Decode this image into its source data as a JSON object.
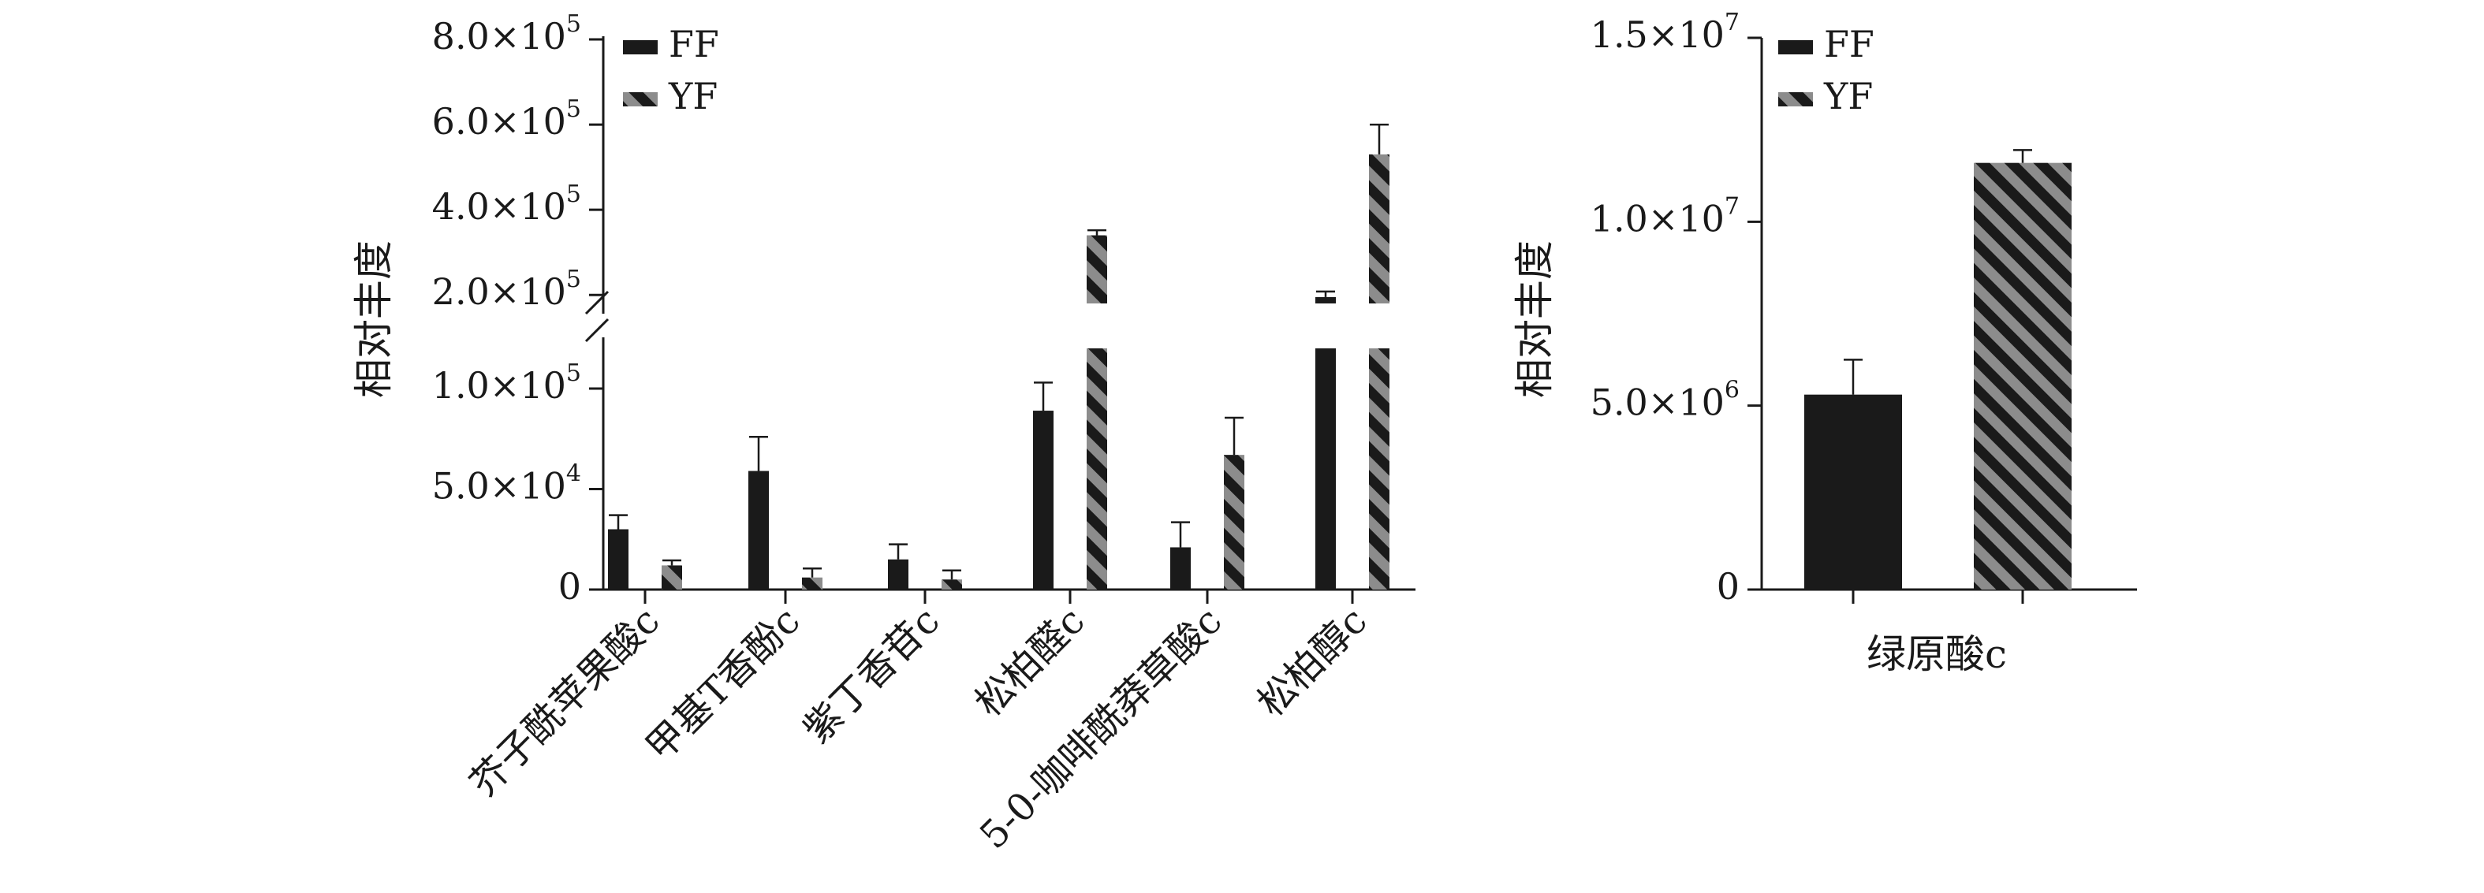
{
  "chart_data": [
    {
      "type": "bar",
      "title": "",
      "ylabel": "相对丰度",
      "xlabel": "",
      "y_axis_break": {
        "lower_range": [
          0,
          120000
        ],
        "upper_range": [
          180000,
          800000
        ]
      },
      "y_ticks_lower": [
        {
          "value": 0,
          "label": "0",
          "exp": ""
        },
        {
          "value": 50000,
          "label": "5.0×10",
          "exp": "4"
        },
        {
          "value": 100000,
          "label": "1.0×10",
          "exp": "5"
        }
      ],
      "y_ticks_upper": [
        {
          "value": 200000,
          "label": "2.0×10",
          "exp": "5"
        },
        {
          "value": 400000,
          "label": "4.0×10",
          "exp": "5"
        },
        {
          "value": 600000,
          "label": "6.0×10",
          "exp": "5"
        },
        {
          "value": 800000,
          "label": "8.0×10",
          "exp": "5"
        }
      ],
      "categories": [
        "芥子酰苹果酸c",
        "甲基T香酚c",
        "紫丁香苷c",
        "松柏醛c",
        "5-0-咖啡酰莽草酸c",
        "松柏醇c"
      ],
      "series": [
        {
          "name": "FF",
          "values": [
            30000,
            59000,
            15000,
            89000,
            21000,
            195000
          ],
          "errors": [
            7000,
            17000,
            7500,
            14000,
            12500,
            13000
          ],
          "color": "#1a1a1a",
          "pattern": "solid"
        },
        {
          "name": "YF",
          "values": [
            12000,
            6000,
            5000,
            340000,
            67000,
            530000
          ],
          "errors": [
            2500,
            4500,
            4500,
            12000,
            18500,
            70000
          ],
          "color": "#808080",
          "pattern": "diagonal-stripes"
        }
      ],
      "legend_position": "top-left",
      "grid": false
    },
    {
      "type": "bar",
      "title": "",
      "ylabel": "相对丰度",
      "xlabel": "",
      "ylim": [
        0,
        15000000
      ],
      "y_ticks": [
        {
          "value": 0,
          "label": "0",
          "exp": ""
        },
        {
          "value": 5000000,
          "label": "5.0×10",
          "exp": "6"
        },
        {
          "value": 10000000,
          "label": "1.0×10",
          "exp": "7"
        },
        {
          "value": 15000000,
          "label": "1.5×10",
          "exp": "7"
        }
      ],
      "categories": [
        "绿原酸c"
      ],
      "series": [
        {
          "name": "FF",
          "values": [
            5300000
          ],
          "errors": [
            950000
          ],
          "color": "#1a1a1a",
          "pattern": "solid"
        },
        {
          "name": "YF",
          "values": [
            11600000
          ],
          "errors": [
            350000
          ],
          "color": "#808080",
          "pattern": "diagonal-stripes"
        }
      ],
      "legend_position": "top-left",
      "grid": false
    }
  ]
}
